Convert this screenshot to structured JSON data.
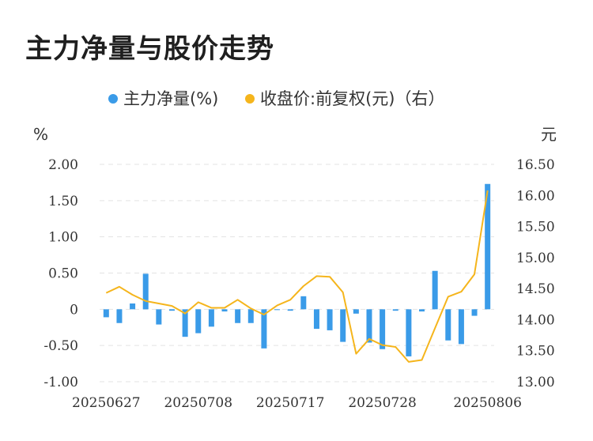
{
  "title": "主力净量与股价走势",
  "colors": {
    "bar": "#3a9be8",
    "line": "#f5b51c",
    "grid": "#e3e3e3",
    "text": "#333333"
  },
  "chart_data": {
    "type": "bar+line",
    "legend": [
      "主力净量(%)",
      "收盘价:前复权(元)（右）"
    ],
    "y_left_unit": "%",
    "y_right_unit": "元",
    "y_left_ticks": [
      "2.00",
      "1.50",
      "1.00",
      "0.50",
      "0",
      "-0.50",
      "-1.00"
    ],
    "y_right_ticks": [
      "16.50",
      "16.00",
      "15.50",
      "15.00",
      "14.50",
      "14.00",
      "13.50",
      "13.00"
    ],
    "x_tick_labels": [
      "20250627",
      "20250708",
      "20250717",
      "20250728",
      "20250806"
    ],
    "ylim_left": [
      -1.0,
      2.0
    ],
    "ylim_right": [
      13.0,
      16.5
    ],
    "x_count": 30,
    "x_label_indices": [
      0,
      7,
      14,
      21,
      29
    ],
    "series": [
      {
        "name": "主力净量(%)",
        "kind": "bar",
        "axis": "left",
        "values": [
          -0.11,
          -0.19,
          0.08,
          0.49,
          -0.21,
          -0.02,
          -0.38,
          -0.33,
          -0.24,
          -0.03,
          -0.19,
          -0.19,
          -0.54,
          -0.01,
          -0.02,
          0.18,
          -0.27,
          -0.29,
          -0.45,
          -0.06,
          -0.46,
          -0.55,
          -0.02,
          -0.65,
          -0.03,
          0.53,
          -0.43,
          -0.48,
          -0.09,
          1.73
        ]
      },
      {
        "name": "收盘价:前复权(元)（右）",
        "kind": "line",
        "axis": "right",
        "values": [
          14.43,
          14.53,
          14.4,
          14.3,
          14.26,
          14.22,
          14.1,
          14.28,
          14.19,
          14.19,
          14.32,
          14.18,
          14.08,
          14.23,
          14.32,
          14.54,
          14.7,
          14.69,
          14.44,
          13.45,
          13.69,
          13.59,
          13.56,
          13.32,
          13.35,
          13.86,
          14.37,
          14.45,
          14.73,
          16.08
        ]
      }
    ]
  }
}
